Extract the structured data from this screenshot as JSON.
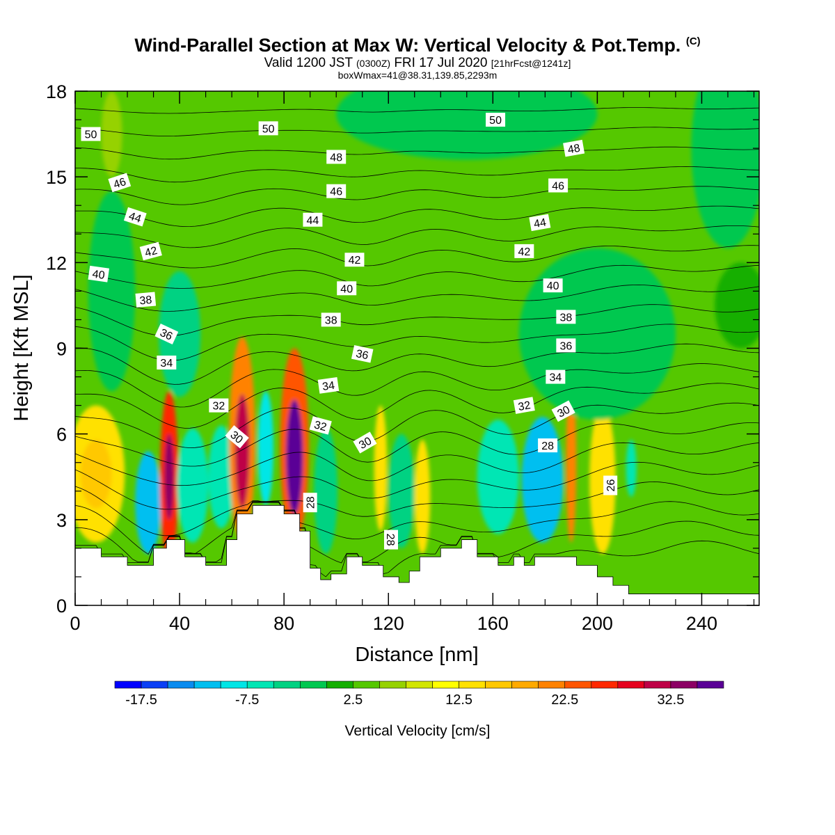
{
  "header": {
    "title": "Wind-Parallel Section at Max W: Vertical Velocity & Pot.Temp.",
    "title_mark": "(C)",
    "subtitle_a": "Valid 1200 JST",
    "subtitle_b": "(0300Z)",
    "subtitle_c": "FRI 17 Jul 2020",
    "subtitle_d": "[21hrFcst@1241z]",
    "subtitle2": "boxWmax=41@38.31,139.85,2293m"
  },
  "chart_data": {
    "type": "heatmap",
    "xlabel": "Distance [nm]",
    "ylabel": "Height [Kft MSL]",
    "xlim": [
      0,
      262
    ],
    "ylim": [
      0,
      18
    ],
    "x_ticks": [
      "0",
      "40",
      "80",
      "120",
      "160",
      "200",
      "240"
    ],
    "y_ticks": [
      "0",
      "3",
      "6",
      "9",
      "12",
      "15",
      "18"
    ],
    "background_value": 2.5,
    "colorbar": {
      "title": "Vertical Velocity [cm/s]",
      "tick_labels": [
        "-17.5",
        "-7.5",
        "2.5",
        "12.5",
        "22.5",
        "32.5"
      ],
      "tick_values": [
        -17.5,
        -7.5,
        2.5,
        12.5,
        22.5,
        32.5
      ],
      "min": -20,
      "step": 2.5,
      "colors": [
        "#0000ff",
        "#0a3ff5",
        "#0a8cf0",
        "#00bff0",
        "#00e6e6",
        "#00e6b4",
        "#00d282",
        "#00c850",
        "#14af00",
        "#55c800",
        "#96d200",
        "#d2e600",
        "#ffff00",
        "#ffe100",
        "#ffc800",
        "#ffaa00",
        "#ff8200",
        "#ff5500",
        "#ff2800",
        "#e6001e",
        "#be0046",
        "#8c0064",
        "#5a0096"
      ]
    },
    "w_features": [
      {
        "x": 8,
        "y": 4.6,
        "rx": 11,
        "ry": 2.4,
        "v": 12.5
      },
      {
        "x": 8,
        "y": 4.6,
        "rx": 6,
        "ry": 1.2,
        "v": 15
      },
      {
        "x": 28,
        "y": 3.6,
        "rx": 5,
        "ry": 1.8,
        "v": -12.5
      },
      {
        "x": 36,
        "y": 4.5,
        "rx": 3.5,
        "ry": 3.0,
        "v": 25
      },
      {
        "x": 36,
        "y": 4.5,
        "rx": 1.8,
        "ry": 1.5,
        "v": 32.5
      },
      {
        "x": 45,
        "y": 4.2,
        "rx": 6,
        "ry": 2.0,
        "v": -7.5
      },
      {
        "x": 56,
        "y": 4.5,
        "rx": 5,
        "ry": 1.8,
        "v": -7.5
      },
      {
        "x": 64,
        "y": 5.8,
        "rx": 5,
        "ry": 3.6,
        "v": 20
      },
      {
        "x": 64,
        "y": 5.4,
        "rx": 2.8,
        "ry": 2.0,
        "v": 30
      },
      {
        "x": 73,
        "y": 5.5,
        "rx": 3,
        "ry": 2.0,
        "v": -10
      },
      {
        "x": 84,
        "y": 5.6,
        "rx": 5.5,
        "ry": 3.4,
        "v": 22.5
      },
      {
        "x": 84,
        "y": 5.2,
        "rx": 3.2,
        "ry": 2.0,
        "v": 35
      },
      {
        "x": 96,
        "y": 4.0,
        "rx": 4.5,
        "ry": 2.2,
        "v": -5
      },
      {
        "x": 117,
        "y": 4.8,
        "rx": 2.5,
        "ry": 2.2,
        "v": 12.5
      },
      {
        "x": 125,
        "y": 4.0,
        "rx": 5,
        "ry": 2.0,
        "v": -5
      },
      {
        "x": 133,
        "y": 3.8,
        "rx": 3,
        "ry": 2.0,
        "v": 12.5
      },
      {
        "x": 162,
        "y": 4.5,
        "rx": 8,
        "ry": 2.0,
        "v": -7.5
      },
      {
        "x": 179,
        "y": 4.4,
        "rx": 8,
        "ry": 2.2,
        "v": -12.5
      },
      {
        "x": 190,
        "y": 5.0,
        "rx": 2,
        "ry": 2.8,
        "v": 20
      },
      {
        "x": 202,
        "y": 4.4,
        "rx": 5,
        "ry": 2.6,
        "v": 12.5
      },
      {
        "x": 213,
        "y": 4.8,
        "rx": 2,
        "ry": 1.0,
        "v": -7.5
      },
      {
        "x": 14,
        "y": 11.0,
        "rx": 9,
        "ry": 3.5,
        "v": -2.5
      },
      {
        "x": 40,
        "y": 9.5,
        "rx": 8,
        "ry": 2.2,
        "v": -5
      },
      {
        "x": 200,
        "y": 9.5,
        "rx": 30,
        "ry": 3.0,
        "v": -2.5
      },
      {
        "x": 150,
        "y": 17.2,
        "rx": 50,
        "ry": 1.6,
        "v": -2.5
      },
      {
        "x": 250,
        "y": 16.0,
        "rx": 14,
        "ry": 3.5,
        "v": -2.5
      },
      {
        "x": 14,
        "y": 16.5,
        "rx": 4,
        "ry": 1.5,
        "v": 5
      },
      {
        "x": 255,
        "y": 10.5,
        "rx": 10,
        "ry": 1.5,
        "v": 0
      }
    ],
    "terrain": {
      "x": [
        0,
        10,
        10,
        20,
        20,
        30,
        30,
        35,
        35,
        42,
        42,
        50,
        50,
        58,
        58,
        62,
        62,
        68,
        68,
        80,
        80,
        86,
        86,
        90,
        90,
        94,
        94,
        98,
        98,
        104,
        104,
        110,
        110,
        118,
        118,
        124,
        124,
        128,
        128,
        132,
        132,
        140,
        140,
        148,
        148,
        154,
        154,
        162,
        162,
        168,
        168,
        172,
        172,
        176,
        176,
        184,
        184,
        192,
        192,
        200,
        200,
        206,
        206,
        212,
        212,
        218,
        218,
        262
      ],
      "y": [
        2.0,
        2.0,
        1.7,
        1.7,
        1.4,
        1.4,
        2.0,
        2.0,
        2.3,
        2.3,
        1.7,
        1.7,
        1.4,
        1.4,
        2.3,
        2.3,
        3.2,
        3.2,
        3.5,
        3.5,
        3.2,
        3.2,
        2.6,
        2.6,
        1.3,
        1.3,
        0.9,
        0.9,
        1.1,
        1.1,
        1.7,
        1.7,
        1.4,
        1.4,
        1.0,
        1.0,
        0.8,
        0.8,
        1.2,
        1.2,
        1.7,
        1.7,
        2.0,
        2.0,
        2.3,
        2.3,
        1.7,
        1.7,
        1.4,
        1.4,
        1.7,
        1.7,
        1.4,
        1.4,
        1.7,
        1.7,
        1.7,
        1.7,
        1.4,
        1.4,
        1.0,
        1.0,
        0.7,
        0.7,
        0.4,
        0.4,
        0.4,
        0.4
      ]
    },
    "contour_labels": [
      {
        "text": "50",
        "x": 6,
        "y": 16.5,
        "angle": 0
      },
      {
        "text": "50",
        "x": 74,
        "y": 16.7,
        "angle": 0
      },
      {
        "text": "50",
        "x": 161,
        "y": 17.0,
        "angle": 0
      },
      {
        "text": "48",
        "x": 100,
        "y": 15.7,
        "angle": 0
      },
      {
        "text": "48",
        "x": 191,
        "y": 16.0,
        "angle": -10
      },
      {
        "text": "46",
        "x": 17,
        "y": 14.8,
        "angle": -18
      },
      {
        "text": "46",
        "x": 100,
        "y": 14.5,
        "angle": 0
      },
      {
        "text": "46",
        "x": 185,
        "y": 14.7,
        "angle": 0
      },
      {
        "text": "44",
        "x": 23,
        "y": 13.6,
        "angle": 18
      },
      {
        "text": "44",
        "x": 91,
        "y": 13.5,
        "angle": 0
      },
      {
        "text": "44",
        "x": 178,
        "y": 13.4,
        "angle": -10
      },
      {
        "text": "42",
        "x": 29,
        "y": 12.4,
        "angle": -15
      },
      {
        "text": "42",
        "x": 107,
        "y": 12.1,
        "angle": 0
      },
      {
        "text": "42",
        "x": 172,
        "y": 12.4,
        "angle": 0
      },
      {
        "text": "40",
        "x": 9,
        "y": 11.6,
        "angle": 8
      },
      {
        "text": "40",
        "x": 104,
        "y": 11.1,
        "angle": 0
      },
      {
        "text": "40",
        "x": 183,
        "y": 11.2,
        "angle": 0
      },
      {
        "text": "38",
        "x": 27,
        "y": 10.7,
        "angle": -5
      },
      {
        "text": "38",
        "x": 98,
        "y": 10.0,
        "angle": 0
      },
      {
        "text": "38",
        "x": 188,
        "y": 10.1,
        "angle": 0
      },
      {
        "text": "36",
        "x": 35,
        "y": 9.5,
        "angle": 25
      },
      {
        "text": "36",
        "x": 110,
        "y": 8.8,
        "angle": 12
      },
      {
        "text": "36",
        "x": 188,
        "y": 9.1,
        "angle": 0
      },
      {
        "text": "34",
        "x": 35,
        "y": 8.5,
        "angle": 0
      },
      {
        "text": "34",
        "x": 97,
        "y": 7.7,
        "angle": -8
      },
      {
        "text": "34",
        "x": 184,
        "y": 8.0,
        "angle": 0
      },
      {
        "text": "32",
        "x": 55,
        "y": 7.0,
        "angle": 0
      },
      {
        "text": "32",
        "x": 94,
        "y": 6.3,
        "angle": 15
      },
      {
        "text": "32",
        "x": 172,
        "y": 7.0,
        "angle": -10
      },
      {
        "text": "30",
        "x": 62,
        "y": 5.9,
        "angle": 40
      },
      {
        "text": "30",
        "x": 111,
        "y": 5.7,
        "angle": -30
      },
      {
        "text": "30",
        "x": 187,
        "y": 6.8,
        "angle": -28
      },
      {
        "text": "28",
        "x": 181,
        "y": 5.6,
        "angle": 0
      },
      {
        "text": "28",
        "x": 90,
        "y": 3.6,
        "angle": -90
      },
      {
        "text": "28",
        "x": 121,
        "y": 2.3,
        "angle": 90
      },
      {
        "text": "26",
        "x": 205,
        "y": 4.2,
        "angle": -90
      }
    ]
  }
}
